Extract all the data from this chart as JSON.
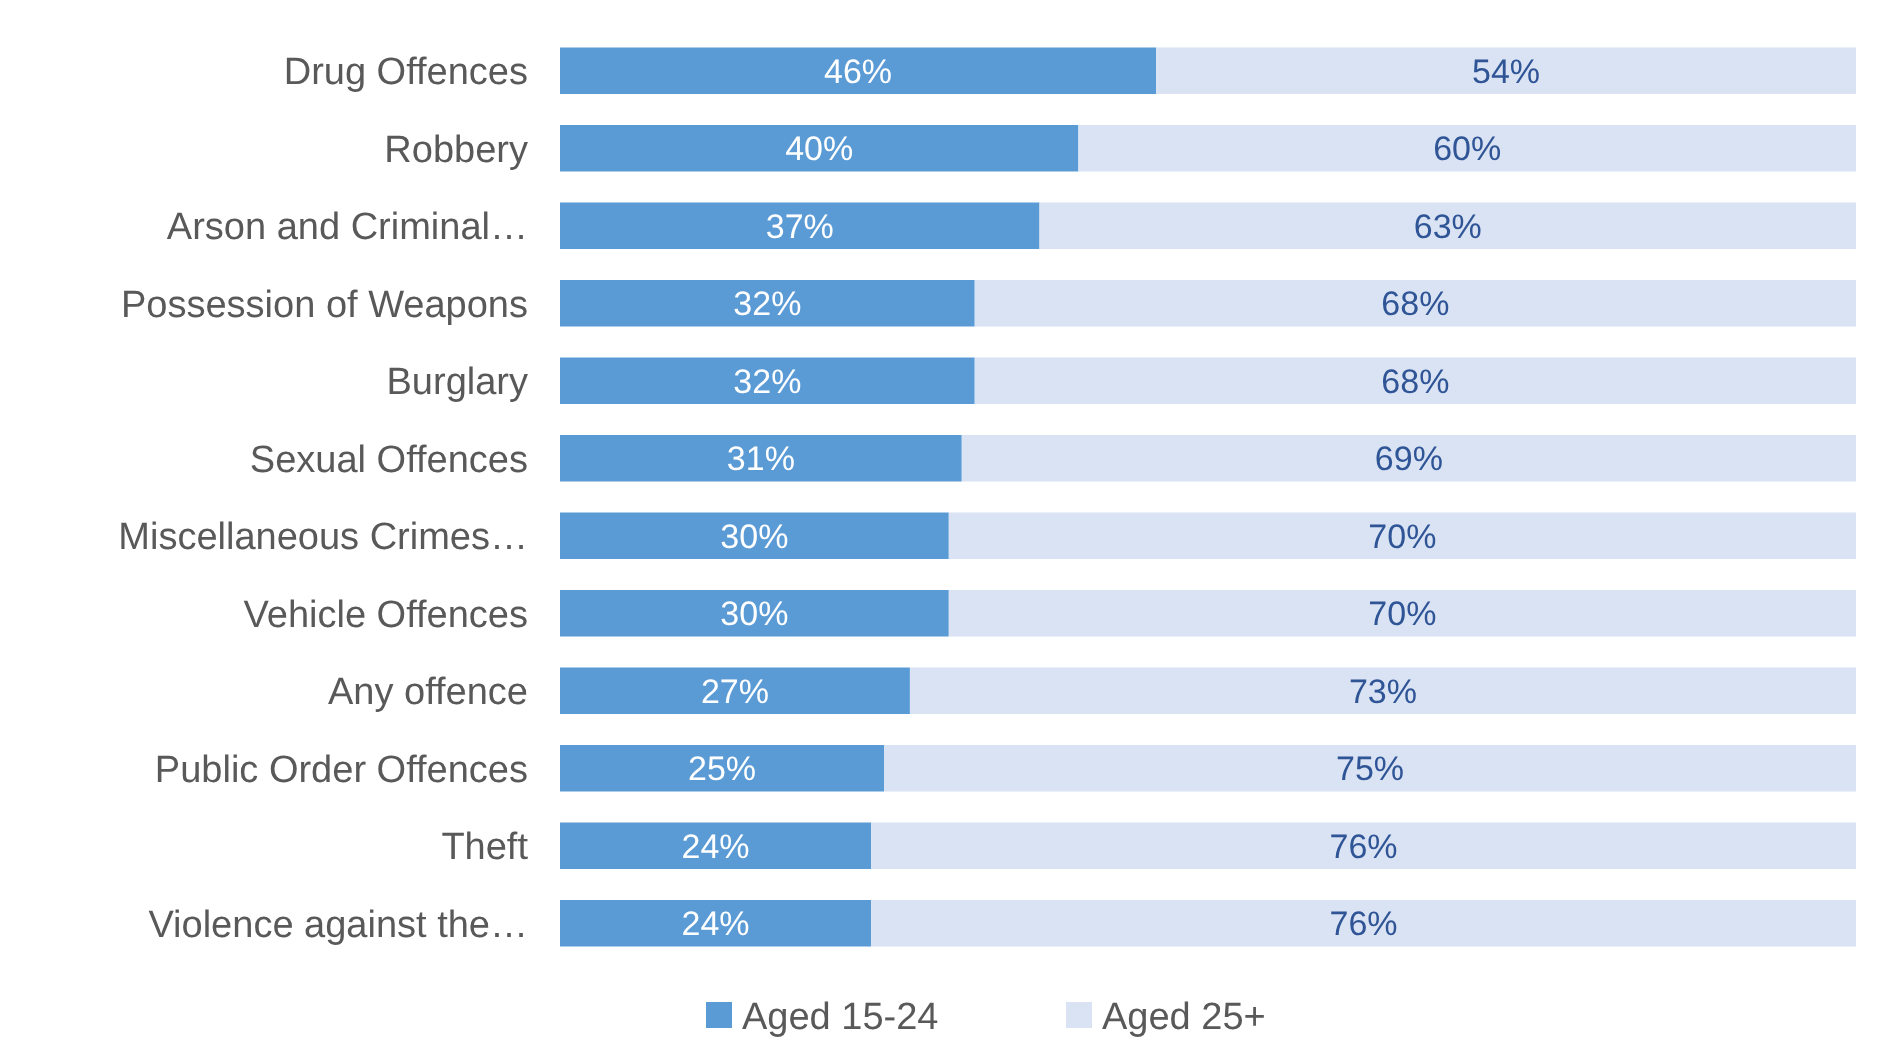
{
  "chart_data": {
    "type": "bar",
    "orientation": "horizontal",
    "stacked": true,
    "categories": [
      "Drug Offences",
      "Robbery",
      "Arson and Criminal…",
      "Possession of Weapons",
      "Burglary",
      "Sexual Offences",
      "Miscellaneous Crimes…",
      "Vehicle Offences",
      "Any offence",
      "Public Order Offences",
      "Theft",
      "Violence against the…"
    ],
    "series": [
      {
        "name": "Aged 15-24",
        "color": "#5b9bd5",
        "values": [
          46,
          40,
          37,
          32,
          32,
          31,
          30,
          30,
          27,
          25,
          24,
          24
        ],
        "value_labels": [
          "46%",
          "40%",
          "37%",
          "32%",
          "32%",
          "31%",
          "30%",
          "30%",
          "27%",
          "25%",
          "24%",
          "24%"
        ]
      },
      {
        "name": "Aged 25+",
        "color": "#dae3f3",
        "values": [
          54,
          60,
          63,
          68,
          68,
          69,
          70,
          70,
          73,
          75,
          76,
          76
        ],
        "value_labels": [
          "54%",
          "60%",
          "63%",
          "68%",
          "68%",
          "69%",
          "70%",
          "70%",
          "73%",
          "75%",
          "76%",
          "76%"
        ]
      }
    ],
    "tick_labels": "y",
    "legend": "bottom"
  }
}
